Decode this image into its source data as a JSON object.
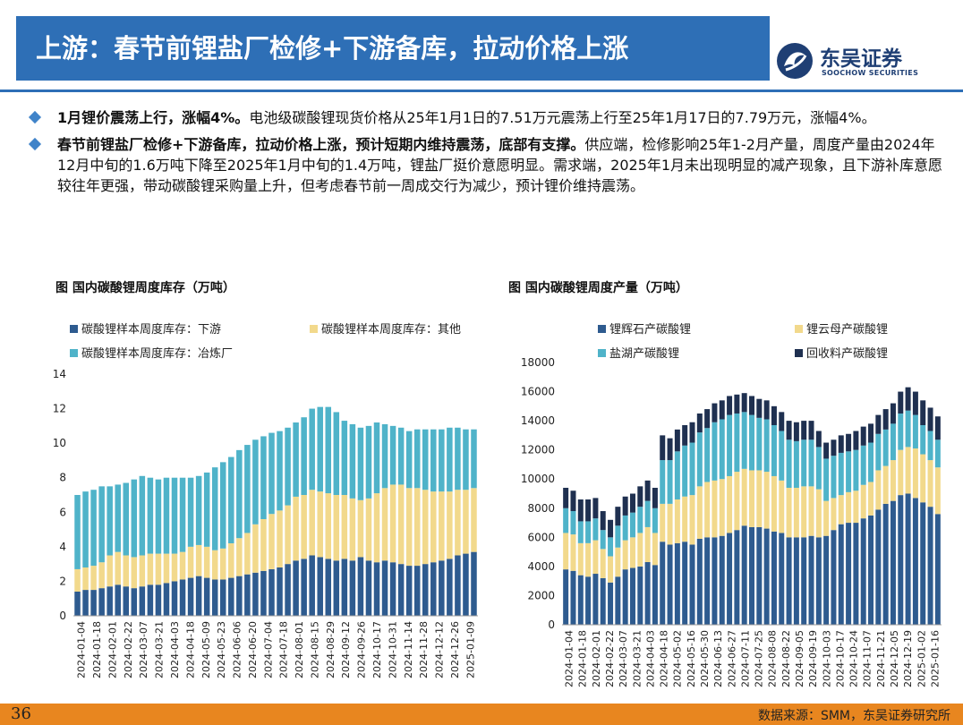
{
  "header": {
    "title": "上游：春节前锂盐厂检修+下游备库，拉动价格上涨",
    "logo_name": "东吴证券",
    "logo_en": "SOOCHOW SECURITIES"
  },
  "bullets": [
    {
      "bold": "1月锂价震荡上行，涨幅4%。",
      "text": "电池级碳酸锂现货价格从25年1月1日的7.51万元震荡上行至25年1月17日的7.79万元，涨幅4%。"
    },
    {
      "bold": "春节前锂盐厂检修+下游备库，拉动价格上涨，预计短期内维持震荡，底部有支撑。",
      "text": "供应端，检修影响25年1-2月产量，周度产量由2024年12月中旬的1.6万吨下降至2025年1月中旬的1.4万吨，锂盐厂挺价意愿明显。需求端，2025年1月未出现明显的减产现象，且下游补库意愿较往年更强，带动碳酸锂采购量上升，但考虑春节前一周成交行为减少，预计锂价维持震荡。"
    }
  ],
  "footer": {
    "page": "36",
    "source": "数据来源：SMM，东吴证券研究所"
  },
  "colors": {
    "title_bar": "#2e6fb6",
    "footer": "#e8861f",
    "dark_blue": "#2e5b8f",
    "yellow": "#f2d98c",
    "teal": "#4fb3c9",
    "navy": "#1f3050"
  },
  "chart_data": [
    {
      "type": "bar",
      "stacked": true,
      "title": "图 国内碳酸锂周度库存（万吨）",
      "ylim": [
        0,
        14
      ],
      "yticks": [
        0,
        2,
        4,
        6,
        8,
        10,
        12,
        14
      ],
      "x_tick_labels": [
        "2024-01-04",
        "2024-01-18",
        "2024-02-01",
        "2024-02-22",
        "2024-03-07",
        "2024-03-21",
        "2024-04-03",
        "2024-04-18",
        "2024-05-09",
        "2024-05-23",
        "2024-06-06",
        "2024-06-20",
        "2024-07-04",
        "2024-07-18",
        "2024-08-01",
        "2024-08-15",
        "2024-08-29",
        "2024-09-12",
        "2024-09-26",
        "2024-10-17",
        "2024-10-31",
        "2024-11-14",
        "2024-11-28",
        "2024-12-12",
        "2024-12-26",
        "2025-01-09"
      ],
      "legend_position": "top",
      "series": [
        {
          "name": "碳酸锂样本周度库存：下游",
          "color": "#2e5b8f",
          "values": [
            1.4,
            1.5,
            1.5,
            1.6,
            1.7,
            1.8,
            1.7,
            1.6,
            1.7,
            1.8,
            1.8,
            1.9,
            2.0,
            2.1,
            2.2,
            2.3,
            2.2,
            2.1,
            2.1,
            2.2,
            2.3,
            2.4,
            2.5,
            2.6,
            2.7,
            2.8,
            3.0,
            3.2,
            3.3,
            3.5,
            3.4,
            3.3,
            3.2,
            3.3,
            3.2,
            3.4,
            3.2,
            3.1,
            3.2,
            3.1,
            3.0,
            2.9,
            2.9,
            3.0,
            3.1,
            3.2,
            3.3,
            3.5,
            3.6,
            3.7
          ]
        },
        {
          "name": "碳酸锂样本周度库存：其他",
          "color": "#f2d98c",
          "values": [
            1.3,
            1.3,
            1.4,
            1.5,
            1.8,
            1.9,
            1.8,
            1.8,
            1.8,
            1.8,
            1.8,
            1.7,
            1.6,
            1.6,
            1.8,
            1.8,
            1.8,
            1.7,
            1.8,
            2.0,
            2.2,
            2.4,
            2.8,
            3.0,
            3.2,
            3.3,
            3.4,
            3.7,
            3.7,
            3.8,
            3.8,
            3.8,
            3.8,
            3.7,
            3.6,
            3.3,
            3.6,
            4.0,
            4.2,
            4.5,
            4.6,
            4.5,
            4.5,
            4.3,
            4.1,
            4.0,
            3.9,
            3.8,
            3.7,
            3.7
          ]
        },
        {
          "name": "碳酸锂样本周度库存：冶炼厂",
          "color": "#4fb3c9",
          "values": [
            4.3,
            4.4,
            4.4,
            4.4,
            4.0,
            3.9,
            4.2,
            4.5,
            4.6,
            4.4,
            4.3,
            4.4,
            4.4,
            4.3,
            4.0,
            4.0,
            4.3,
            4.8,
            5.0,
            5.0,
            5.1,
            5.1,
            4.9,
            4.8,
            4.7,
            4.6,
            4.5,
            4.3,
            4.5,
            4.7,
            4.9,
            5.0,
            4.8,
            4.3,
            4.3,
            4.2,
            4.2,
            4.1,
            3.7,
            3.4,
            3.3,
            3.3,
            3.4,
            3.5,
            3.6,
            3.6,
            3.7,
            3.6,
            3.5,
            3.4
          ]
        }
      ]
    },
    {
      "type": "bar",
      "stacked": true,
      "title": "图 国内碳酸锂周度产量（万吨）",
      "ylim": [
        0,
        18000
      ],
      "yticks": [
        0,
        2000,
        4000,
        6000,
        8000,
        10000,
        12000,
        14000,
        16000,
        18000
      ],
      "x_tick_labels": [
        "2024-01-04",
        "2024-01-18",
        "2024-02-01",
        "2024-02-22",
        "2024-03-07",
        "2024-03-21",
        "2024-04-03",
        "2024-04-18",
        "2024-05-02",
        "2024-05-16",
        "2024-05-30",
        "2024-06-13",
        "2024-06-27",
        "2024-07-11",
        "2024-07-25",
        "2024-08-08",
        "2024-08-22",
        "2024-09-05",
        "2024-09-19",
        "2024-10-03",
        "2024-10-17",
        "2024-10-24",
        "2024-11-07",
        "2024-11-21",
        "2024-12-05",
        "2024-12-19",
        "2025-01-02",
        "2025-01-16"
      ],
      "legend_position": "top",
      "series": [
        {
          "name": "锂辉石产碳酸锂",
          "color": "#2e5b8f",
          "values": [
            3800,
            3700,
            3400,
            3300,
            3500,
            3200,
            2900,
            3300,
            3800,
            3900,
            4000,
            4300,
            4100,
            5700,
            5500,
            5600,
            5700,
            5500,
            5900,
            6000,
            6000,
            6100,
            6300,
            6500,
            6800,
            6700,
            6700,
            6600,
            6400,
            6300,
            6000,
            6000,
            6000,
            6100,
            6000,
            6100,
            6500,
            6900,
            7000,
            7000,
            7300,
            7500,
            7900,
            8300,
            8500,
            8900,
            9000,
            8700,
            8400,
            8100,
            7600
          ]
        },
        {
          "name": "锂云母产碳酸锂",
          "color": "#f2d98c",
          "values": [
            2500,
            2500,
            2200,
            2300,
            2300,
            2000,
            1800,
            2000,
            2000,
            2100,
            2300,
            2400,
            2200,
            2600,
            2800,
            3000,
            3100,
            3400,
            3600,
            3800,
            3900,
            3900,
            3900,
            4000,
            3900,
            3900,
            3900,
            3900,
            3800,
            3600,
            3400,
            3400,
            3500,
            3400,
            3300,
            2400,
            2200,
            2000,
            2100,
            2200,
            2300,
            2300,
            2700,
            2600,
            2800,
            3100,
            3200,
            3400,
            3300,
            3200,
            3200
          ]
        },
        {
          "name": "盐湖产碳酸锂",
          "color": "#4fb3c9",
          "values": [
            1700,
            1600,
            1500,
            1500,
            1500,
            1300,
            1300,
            1500,
            1700,
            1700,
            1800,
            1800,
            1700,
            3000,
            3000,
            3300,
            3500,
            3600,
            3700,
            3700,
            4000,
            4100,
            4200,
            4000,
            3900,
            3800,
            3600,
            3600,
            3500,
            3400,
            3300,
            3200,
            3200,
            3200,
            2900,
            2900,
            2900,
            2900,
            2800,
            2800,
            2700,
            2700,
            2500,
            2500,
            2500,
            2500,
            2500,
            2300,
            2000,
            2000,
            1900
          ]
        },
        {
          "name": "回收料产碳酸锂",
          "color": "#1f3050",
          "values": [
            1400,
            1400,
            1500,
            1500,
            1400,
            1300,
            1200,
            1300,
            1300,
            1300,
            1400,
            1400,
            1400,
            1700,
            1500,
            1500,
            1400,
            1400,
            1300,
            1300,
            1300,
            1300,
            1300,
            1300,
            1300,
            1300,
            1300,
            1300,
            1300,
            1300,
            1300,
            1300,
            1300,
            1300,
            1100,
            1100,
            1100,
            1200,
            1200,
            1300,
            1300,
            1300,
            1300,
            1400,
            1400,
            1500,
            1600,
            1600,
            1700,
            1600,
            1600
          ]
        }
      ]
    }
  ]
}
